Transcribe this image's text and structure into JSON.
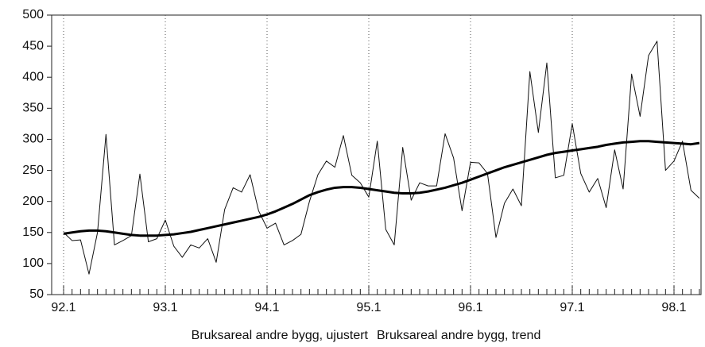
{
  "chart_data": {
    "type": "line",
    "categories": [
      "92.1",
      null,
      null,
      null,
      null,
      null,
      null,
      null,
      null,
      null,
      null,
      null,
      "93.1",
      null,
      null,
      null,
      null,
      null,
      null,
      null,
      null,
      null,
      null,
      null,
      "94.1",
      null,
      null,
      null,
      null,
      null,
      null,
      null,
      null,
      null,
      null,
      null,
      "95.1",
      null,
      null,
      null,
      null,
      null,
      null,
      null,
      null,
      null,
      null,
      null,
      "96.1",
      null,
      null,
      null,
      null,
      null,
      null,
      null,
      null,
      null,
      null,
      null,
      "97.1",
      null,
      null,
      null,
      null,
      null,
      null,
      null,
      null,
      null,
      null,
      null,
      "98.1",
      null,
      null,
      null
    ],
    "series": [
      {
        "name": "Bruksareal andre bygg, ujustert",
        "color": "#111111",
        "width": 1,
        "values": [
          150,
          137,
          138,
          83,
          150,
          308,
          130,
          137,
          145,
          244,
          135,
          140,
          170,
          128,
          110,
          130,
          125,
          140,
          102,
          187,
          222,
          215,
          243,
          185,
          157,
          165,
          130,
          137,
          147,
          200,
          243,
          265,
          255,
          306,
          242,
          230,
          207,
          297,
          155,
          130,
          287,
          202,
          230,
          225,
          225,
          309,
          270,
          185,
          263,
          262,
          245,
          142,
          197,
          220,
          193,
          409,
          311,
          423,
          238,
          242,
          325,
          245,
          215,
          237,
          190,
          283,
          220,
          405,
          337,
          435,
          458,
          250,
          265,
          297,
          218,
          205
        ]
      },
      {
        "name": "Bruksareal andre bygg, trend",
        "color": "#000000",
        "width": 3,
        "values": [
          148,
          150,
          152,
          153,
          153,
          152,
          150,
          148,
          146,
          145,
          145,
          145,
          146,
          147,
          149,
          151,
          154,
          157,
          160,
          163,
          166,
          169,
          172,
          175,
          179,
          184,
          190,
          196,
          203,
          210,
          215,
          219,
          222,
          223,
          223,
          222,
          220,
          218,
          216,
          214,
          213,
          213,
          214,
          216,
          219,
          222,
          226,
          230,
          235,
          240,
          245,
          250,
          255,
          259,
          263,
          267,
          271,
          275,
          278,
          280,
          282,
          284,
          286,
          288,
          291,
          293,
          295,
          296,
          297,
          297,
          296,
          295,
          294,
          293,
          292,
          294
        ]
      }
    ],
    "ylim": [
      50,
      500
    ],
    "yticks": [
      50,
      100,
      150,
      200,
      250,
      300,
      350,
      400,
      450,
      500
    ],
    "grid": true
  }
}
